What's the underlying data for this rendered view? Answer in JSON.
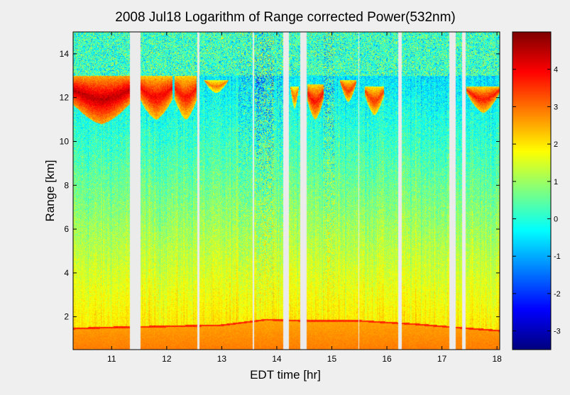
{
  "chart_data": {
    "type": "heatmap",
    "title": "2008 Jul18  Logarithm of Range corrected Power(532nm)",
    "xlabel": "EDT time [hr]",
    "ylabel": "Range [km]",
    "xlim": [
      10.3,
      18.05
    ],
    "ylim": [
      0.5,
      15.0
    ],
    "x_ticks": [
      11,
      12,
      13,
      14,
      15,
      16,
      17,
      18
    ],
    "y_ticks": [
      2,
      4,
      6,
      8,
      10,
      12,
      14
    ],
    "colorbar": {
      "colormap": "jet",
      "clim": [
        -3.5,
        5.0
      ],
      "ticks": [
        -3,
        -2,
        -1,
        0,
        1,
        2,
        3,
        4
      ]
    },
    "data_gaps_hr": [
      [
        11.33,
        11.52
      ],
      [
        12.56,
        12.59
      ],
      [
        13.56,
        13.59
      ],
      [
        14.12,
        14.22
      ],
      [
        14.43,
        14.54
      ],
      [
        15.48,
        15.5
      ],
      [
        16.21,
        16.27
      ],
      [
        17.14,
        17.25
      ],
      [
        17.37,
        17.43
      ]
    ],
    "features": {
      "boundary_layer_top_km": [
        {
          "x": 10.3,
          "y": 1.5
        },
        {
          "x": 11.0,
          "y": 1.55
        },
        {
          "x": 12.0,
          "y": 1.6
        },
        {
          "x": 13.0,
          "y": 1.65
        },
        {
          "x": 13.8,
          "y": 1.9
        },
        {
          "x": 14.5,
          "y": 1.85
        },
        {
          "x": 15.5,
          "y": 1.85
        },
        {
          "x": 16.5,
          "y": 1.7
        },
        {
          "x": 17.5,
          "y": 1.5
        },
        {
          "x": 18.05,
          "y": 1.4
        }
      ],
      "cirrus_layer_km": [
        {
          "x_start": 10.3,
          "x_end": 11.33,
          "base": 10.8,
          "top": 13.0,
          "peak": 4.5
        },
        {
          "x_start": 11.52,
          "x_end": 12.1,
          "base": 11.0,
          "top": 13.0,
          "peak": 4.0
        },
        {
          "x_start": 12.15,
          "x_end": 12.55,
          "base": 11.0,
          "top": 13.0,
          "peak": 3.8
        },
        {
          "x_start": 12.6,
          "x_end": 13.2,
          "base": 12.2,
          "top": 12.8,
          "peak": 3.0
        },
        {
          "x_start": 14.25,
          "x_end": 14.4,
          "base": 11.5,
          "top": 12.5,
          "peak": 3.0
        },
        {
          "x_start": 14.55,
          "x_end": 14.85,
          "base": 11.0,
          "top": 12.6,
          "peak": 3.8
        },
        {
          "x_start": 15.15,
          "x_end": 15.45,
          "base": 11.8,
          "top": 12.8,
          "peak": 3.5
        },
        {
          "x_start": 15.6,
          "x_end": 15.95,
          "base": 11.2,
          "top": 12.5,
          "peak": 3.5
        },
        {
          "x_start": 17.45,
          "x_end": 18.05,
          "base": 11.3,
          "top": 12.5,
          "peak": 3.8
        }
      ],
      "noisy_columns_hr": [
        {
          "x_start": 13.6,
          "x_end": 13.95,
          "strength": 1.0
        },
        {
          "x_start": 14.85,
          "x_end": 15.05,
          "strength": 0.85
        },
        {
          "x_start": 13.3,
          "x_end": 13.55,
          "strength": 0.5
        },
        {
          "x_start": 14.0,
          "x_end": 14.12,
          "strength": 0.5
        }
      ]
    }
  }
}
